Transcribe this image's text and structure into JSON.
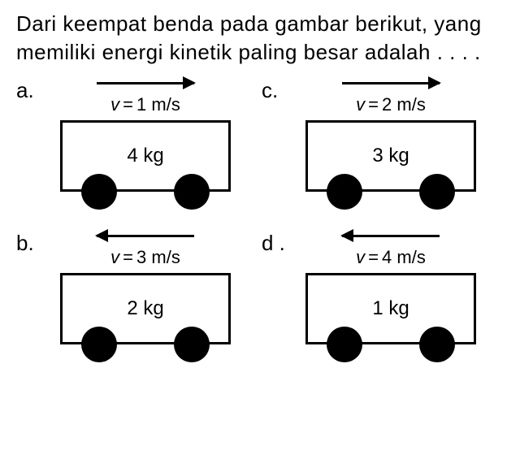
{
  "question": "Dari keempat benda pada gambar berikut, yang memiliki energi kinetik paling besar adalah . . . .",
  "options": {
    "a": {
      "label": "a.",
      "arrow_dir": "right",
      "velocity_v": "v",
      "velocity_eq": "=",
      "velocity_val": "1 m/s",
      "mass": "4 kg"
    },
    "c": {
      "label": "c.",
      "arrow_dir": "right",
      "velocity_v": "v",
      "velocity_eq": "=",
      "velocity_val": "2 m/s",
      "mass": "3 kg"
    },
    "b": {
      "label": "b.",
      "arrow_dir": "left",
      "velocity_v": "v",
      "velocity_eq": "=",
      "velocity_val": "3 m/s",
      "mass": "2 kg"
    },
    "d": {
      "label": "d .",
      "arrow_dir": "left",
      "velocity_v": "v",
      "velocity_eq": "=",
      "velocity_val": "4 m/s",
      "mass": "1 kg"
    }
  },
  "style": {
    "body_border_color": "#000000",
    "wheel_color": "#000000",
    "background": "#ffffff",
    "question_fontsize": 26,
    "label_fontsize": 26,
    "velocity_fontsize": 22,
    "mass_fontsize": 24
  }
}
